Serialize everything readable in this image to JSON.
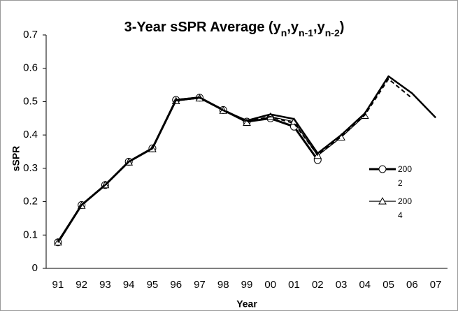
{
  "chart_data": {
    "type": "line",
    "title": [
      {
        "text": "3-Year sSPR Average (y"
      },
      {
        "sub": "n"
      },
      {
        "text": ",y"
      },
      {
        "sub": "n-1"
      },
      {
        "text": ",y"
      },
      {
        "sub": "n-2"
      },
      {
        "text": ")"
      }
    ],
    "x_label": "Year",
    "y_label": "sSPR",
    "categories": [
      "91",
      "92",
      "93",
      "94",
      "95",
      "96",
      "97",
      "98",
      "99",
      "00",
      "01",
      "02",
      "03",
      "04",
      "05",
      "06",
      "07"
    ],
    "series": [
      {
        "name": "2002",
        "color": "#000000",
        "width": 3,
        "marker": "circle",
        "dash": false,
        "values": [
          0.078,
          0.19,
          0.25,
          0.32,
          0.36,
          0.505,
          0.512,
          0.475,
          0.44,
          0.45,
          0.425,
          0.325,
          null,
          null,
          null,
          null,
          null
        ]
      },
      {
        "name": "2004",
        "color": "#000000",
        "width": 1.2,
        "marker": "triangle",
        "dash": false,
        "values": [
          0.078,
          0.188,
          0.25,
          0.318,
          0.358,
          0.502,
          0.51,
          0.473,
          0.437,
          0.455,
          0.44,
          0.338,
          0.393,
          0.458,
          null,
          null,
          null
        ]
      },
      {
        "color": "#000000",
        "width": 2,
        "dash": true,
        "values": [
          0.078,
          0.19,
          0.25,
          0.319,
          0.359,
          0.503,
          0.511,
          0.474,
          0.44,
          0.455,
          0.435,
          0.34,
          0.395,
          0.46,
          0.568,
          0.51,
          null
        ]
      },
      {
        "color": "#000000",
        "width": 2.5,
        "dash": false,
        "values": [
          0.08,
          0.19,
          0.25,
          0.32,
          0.36,
          0.505,
          0.513,
          0.474,
          0.443,
          0.462,
          0.448,
          0.345,
          0.4,
          0.465,
          0.576,
          0.525,
          0.452
        ]
      }
    ],
    "ylim": [
      0,
      0.7
    ],
    "yticks": [
      0,
      0.1,
      0.2,
      0.3,
      0.4,
      0.5,
      0.6,
      0.7
    ],
    "grid": false
  }
}
